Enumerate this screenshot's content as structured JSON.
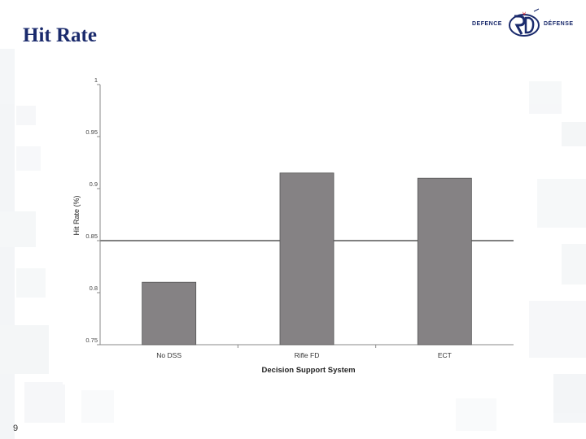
{
  "slide": {
    "title": "Hit Rate",
    "page_number": "9",
    "logo_text_left": "DEFENCE",
    "logo_text_right": "DÉFENSE"
  },
  "colors": {
    "title": "#1a2a6c",
    "bar_fill": "#858284",
    "bar_stroke": "#555555"
  },
  "chart_data": {
    "type": "bar",
    "categories": [
      "No DSS",
      "Rifle FD",
      "ECT"
    ],
    "values": [
      0.81,
      0.915,
      0.91
    ],
    "title": "",
    "xlabel": "Decision Support System",
    "ylabel": "Hit Rate (%)",
    "ylim": [
      0.75,
      1
    ],
    "yticks": [
      0.75,
      0.8,
      0.85,
      0.9,
      0.95,
      1
    ],
    "ytick_labels": [
      "0.75",
      "0.8",
      "0.85",
      "0.9",
      "0.95",
      "1"
    ],
    "grid": "horizontal line at 0.85 only",
    "legend": "none"
  }
}
